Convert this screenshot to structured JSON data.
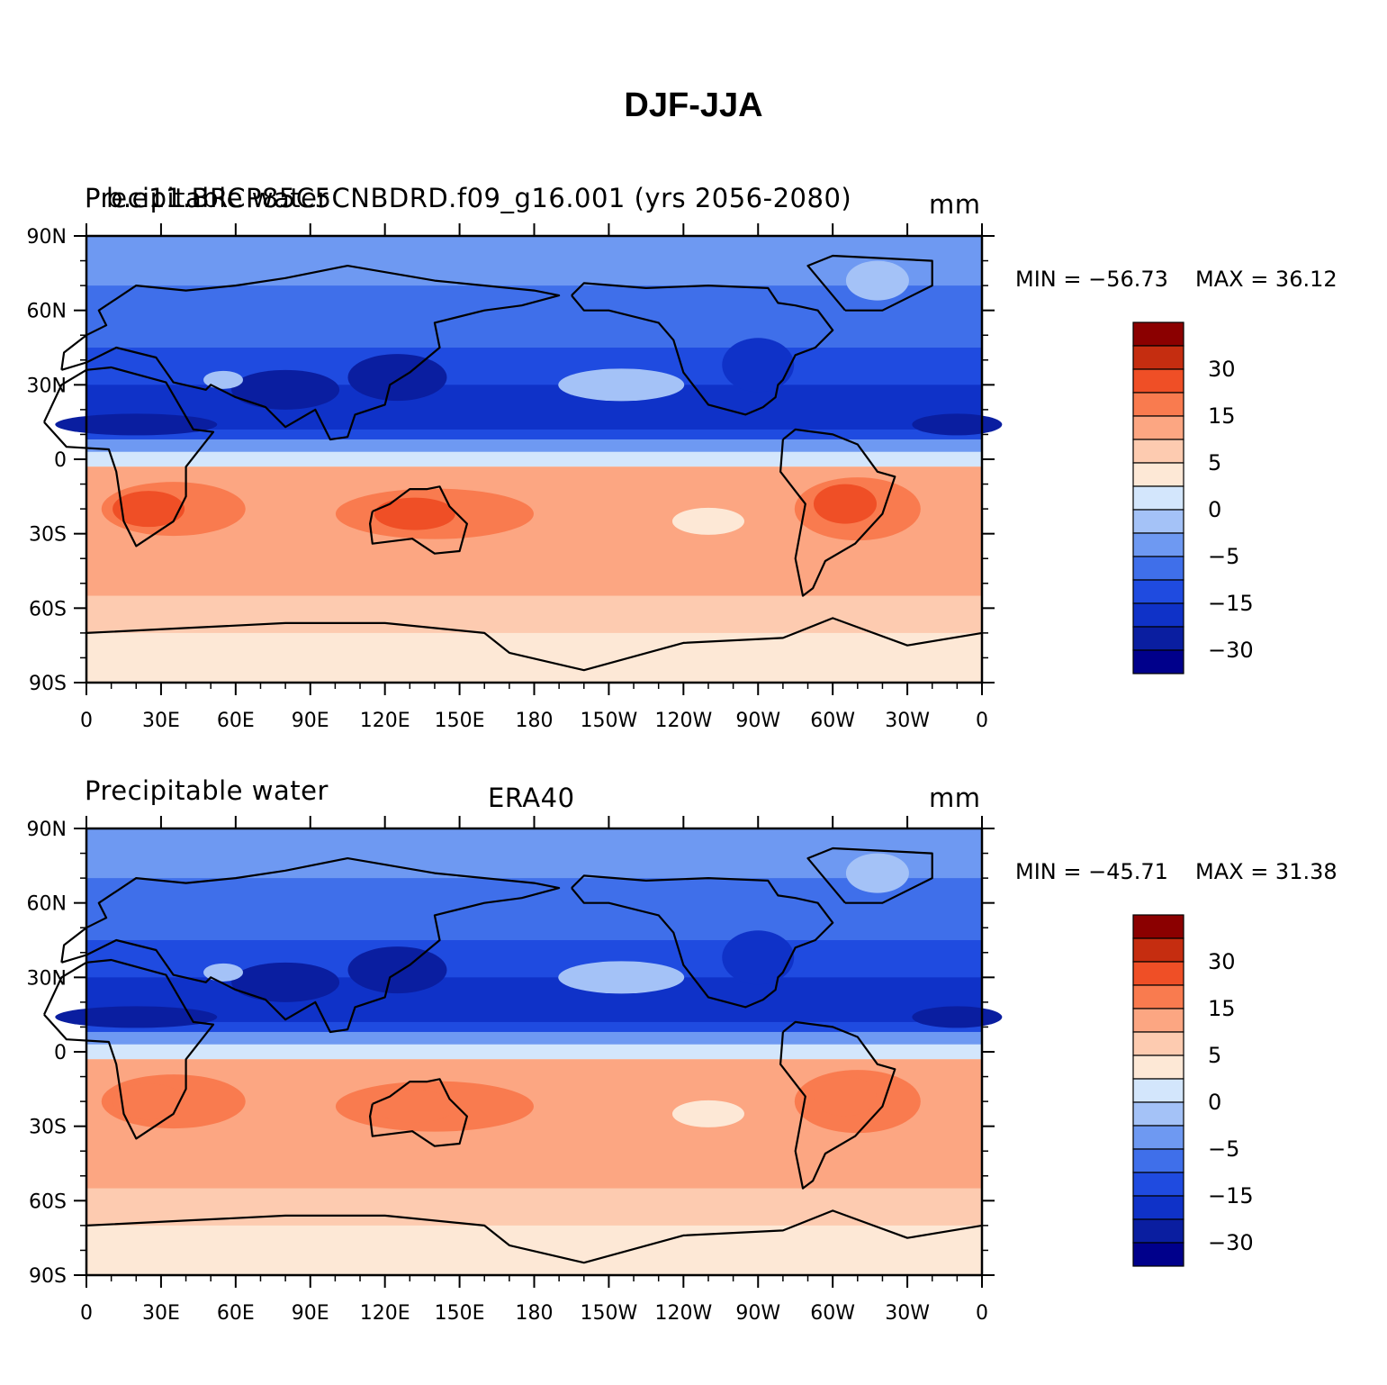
{
  "title": "DJF-JJA",
  "panels": [
    {
      "left_label": "Precipitable water",
      "center_label": "b.e11.BRCP85C5CNBDRD.f09_g16.001 (yrs 2056-2080)",
      "units": "mm",
      "min_label": "MIN = −56.73",
      "max_label": "MAX =   36.12"
    },
    {
      "left_label": "Precipitable water",
      "center_label": "ERA40",
      "units": "mm",
      "min_label": "MIN = −45.71",
      "max_label": "MAX =   31.38"
    }
  ],
  "chart_data": {
    "type": "heatmap",
    "variable": "Precipitable water",
    "units": "mm",
    "x_ticks": [
      "0",
      "30E",
      "60E",
      "90E",
      "120E",
      "150E",
      "180",
      "150W",
      "120W",
      "90W",
      "60W",
      "30W",
      "0"
    ],
    "y_ticks": [
      "90N",
      "60N",
      "30N",
      "0",
      "30S",
      "60S",
      "90S"
    ],
    "xlim": [
      0,
      360
    ],
    "ylim": [
      -90,
      90
    ],
    "colorbar": {
      "colors": [
        "#00008b",
        "#0a1ea0",
        "#0f32c8",
        "#1f4be0",
        "#3f6fea",
        "#6e99f2",
        "#a4c2f7",
        "#d3e6fc",
        "#fde8d6",
        "#fdcbb0",
        "#fca682",
        "#f97b4f",
        "#ef4f26",
        "#c52d10",
        "#8b0000"
      ],
      "tick_labels": [
        "30",
        "15",
        "5",
        "0",
        "−5",
        "−15",
        "−30"
      ]
    }
  }
}
